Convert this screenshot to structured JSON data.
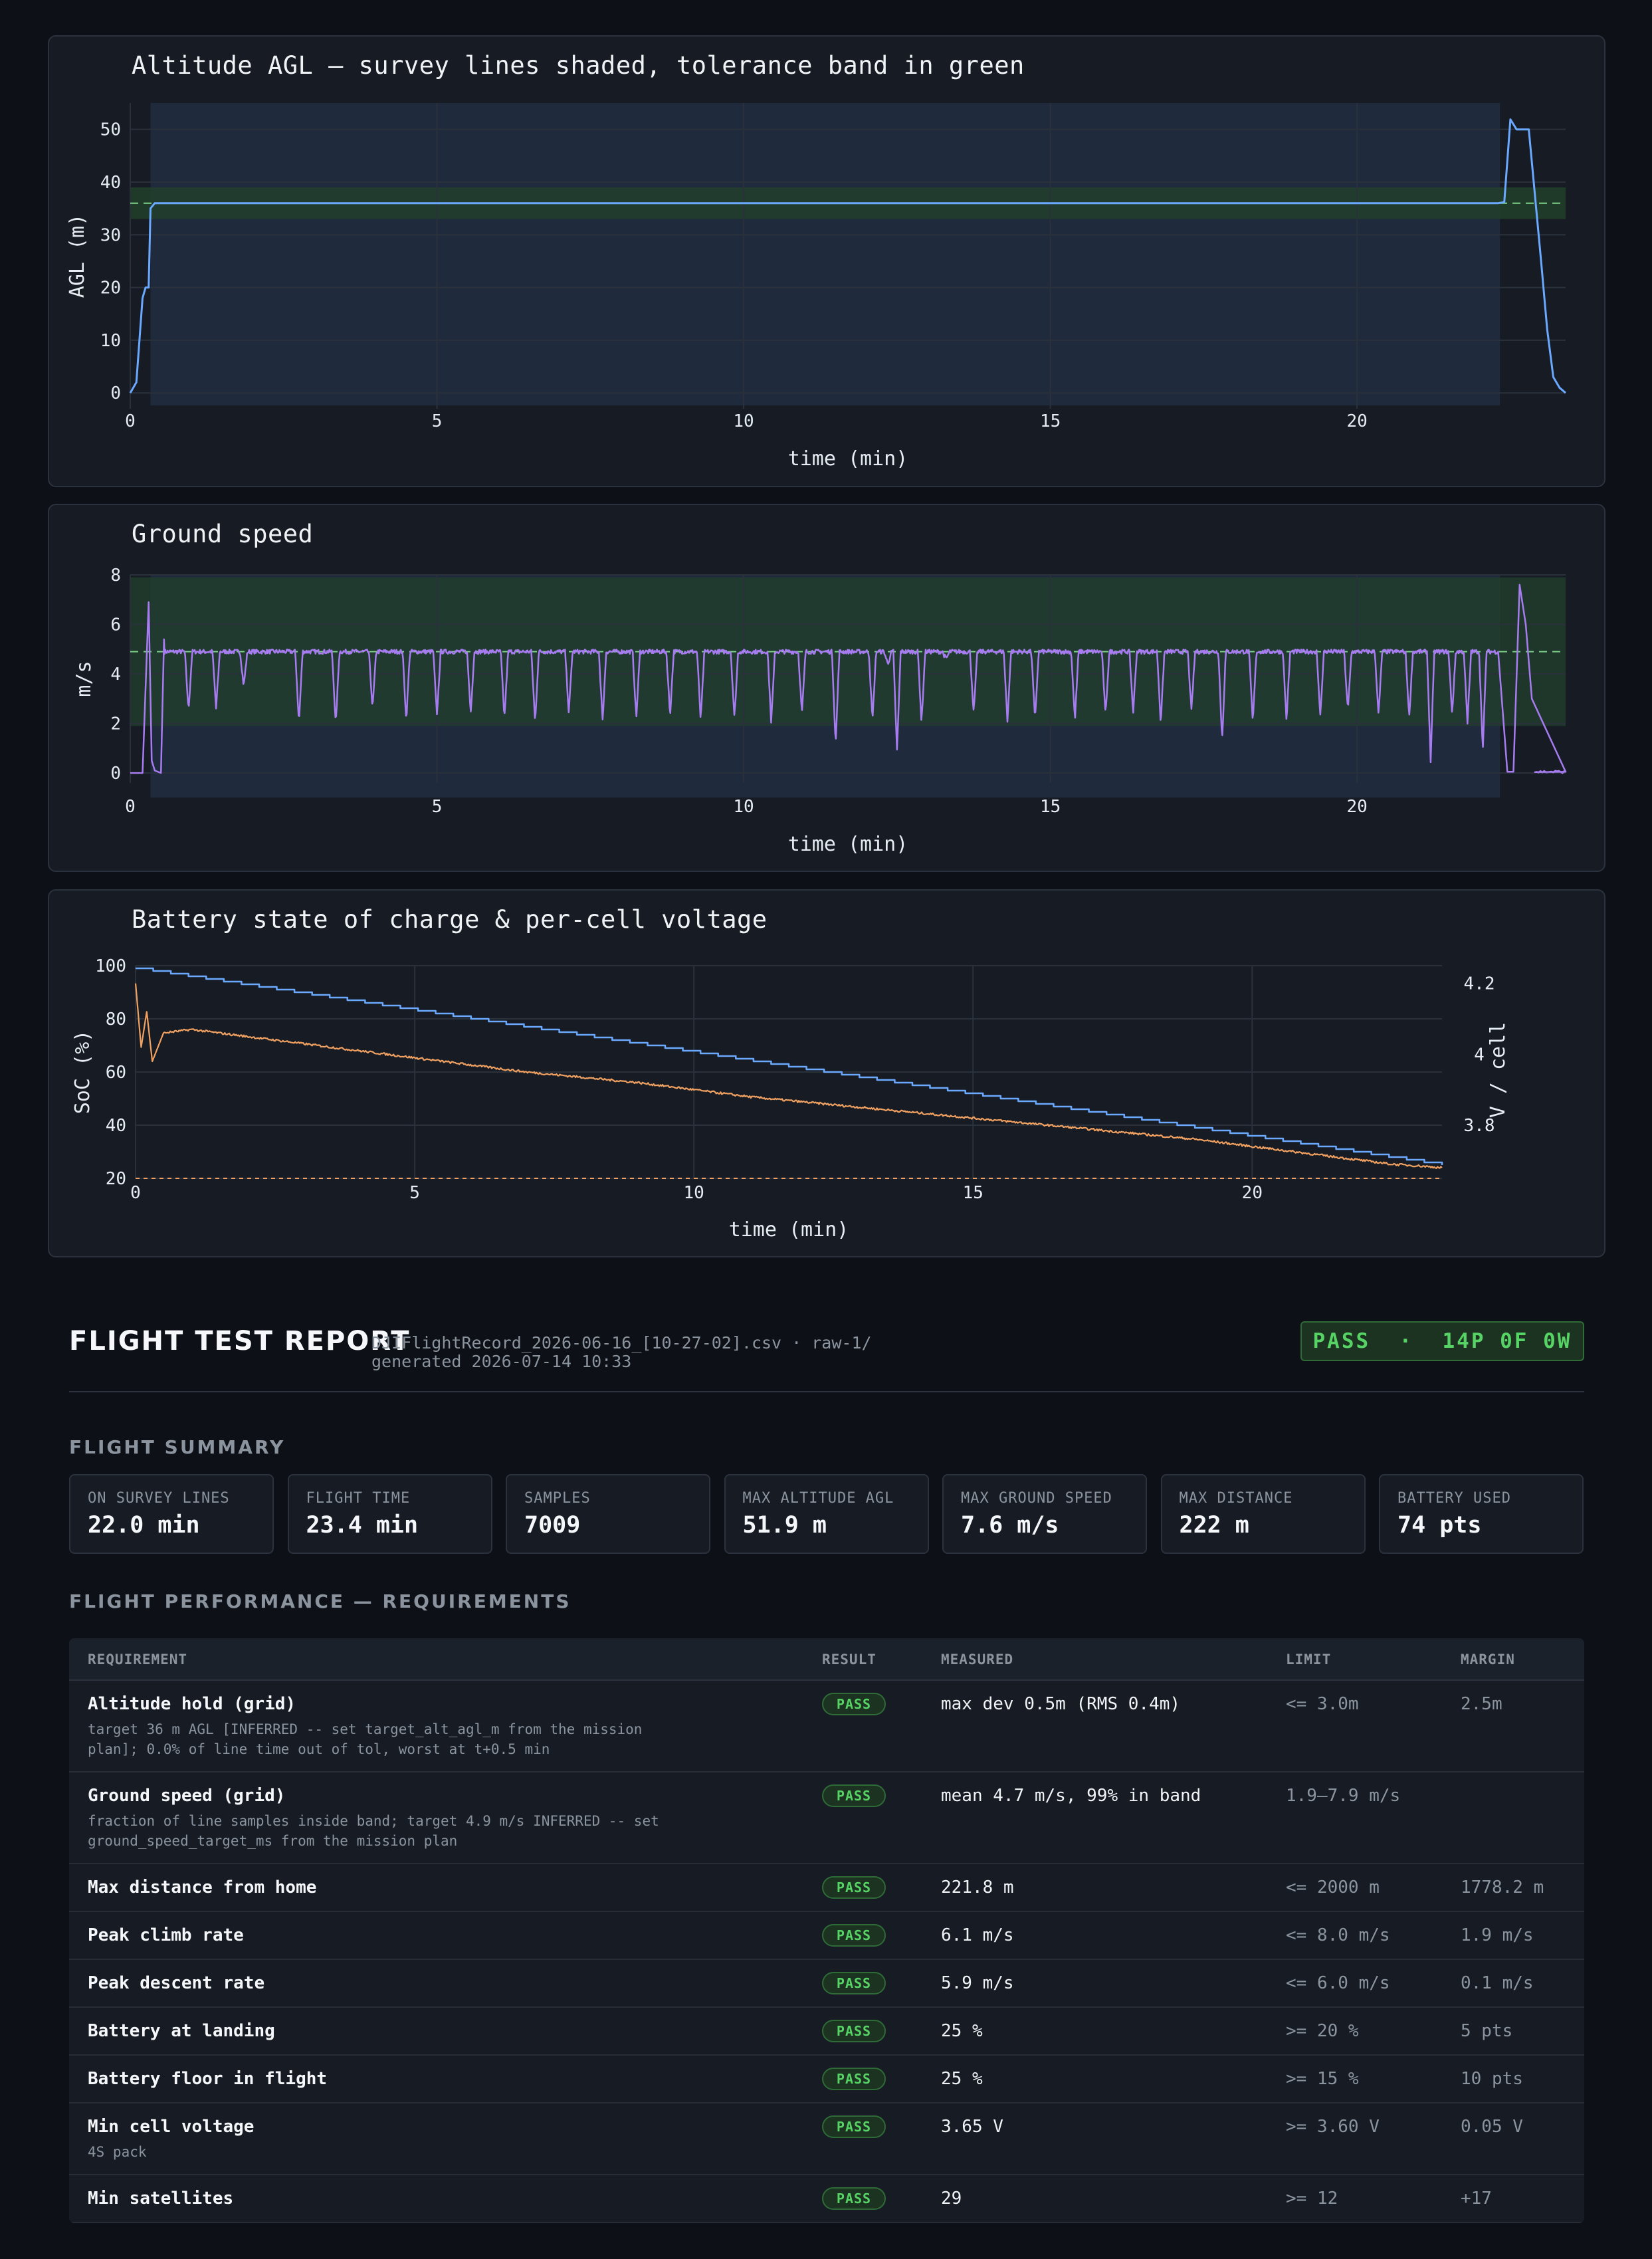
{
  "charts": {
    "altitude": {
      "title": "Altitude AGL — survey lines shaded, tolerance band in green",
      "xlabel": "time (min)",
      "ylabel": "AGL (m)"
    },
    "speed": {
      "title": "Ground speed",
      "xlabel": "time (min)",
      "ylabel": "m/s"
    },
    "battery": {
      "title": "Battery state of charge & per-cell voltage",
      "xlabel": "time (min)",
      "ylabel": "SoC (%)",
      "ylabel2": "V / cell"
    }
  },
  "chart_data": [
    {
      "type": "line",
      "title": "Altitude AGL — survey lines shaded, tolerance band in green",
      "xlabel": "time (min)",
      "ylabel": "AGL (m)",
      "xlim": [
        0,
        23.4
      ],
      "ylim": [
        -3,
        55
      ],
      "x_ticks": [
        0,
        5,
        10,
        15,
        20
      ],
      "y_ticks": [
        0,
        10,
        20,
        30,
        40,
        50
      ],
      "survey_span": [
        0.33,
        22.33
      ],
      "tolerance_band": [
        33,
        39
      ],
      "target": 36,
      "series": [
        {
          "color": "#6aa9ff",
          "x": [
            0,
            0.1,
            0.2,
            0.25,
            0.3,
            0.33,
            0.4,
            1,
            5,
            10,
            15,
            20,
            22.3,
            22.4,
            22.5,
            22.6,
            22.8,
            23.0,
            23.1,
            23.2,
            23.3,
            23.4
          ],
          "y": [
            0,
            2,
            18,
            20,
            20,
            35,
            36,
            36,
            36,
            36,
            36,
            36,
            36,
            36.2,
            51.9,
            50,
            50,
            25,
            12,
            3,
            1,
            0
          ]
        }
      ],
      "grid": true
    },
    {
      "type": "line",
      "title": "Ground speed",
      "xlabel": "time (min)",
      "ylabel": "m/s",
      "xlim": [
        0,
        23.4
      ],
      "ylim": [
        -0.4,
        8
      ],
      "x_ticks": [
        0,
        5,
        10,
        15,
        20
      ],
      "y_ticks": [
        0,
        2,
        4,
        6,
        8
      ],
      "survey_span": [
        0.33,
        22.33
      ],
      "speed_band": [
        1.9,
        7.9
      ],
      "target": 4.9,
      "series": [
        {
          "color": "#a67cf0",
          "base": 4.9,
          "dips": [
            [
              0.95,
              2.5
            ],
            [
              1.4,
              2.6
            ],
            [
              1.85,
              3.5
            ],
            [
              2.75,
              2.0
            ],
            [
              3.35,
              1.9
            ],
            [
              3.95,
              2.6
            ],
            [
              4.5,
              2.1
            ],
            [
              5.0,
              2.3
            ],
            [
              5.55,
              2.4
            ],
            [
              6.1,
              2.2
            ],
            [
              6.6,
              2.0
            ],
            [
              7.15,
              2.4
            ],
            [
              7.7,
              2.1
            ],
            [
              8.25,
              2.2
            ],
            [
              8.8,
              2.3
            ],
            [
              9.3,
              2.1
            ],
            [
              9.85,
              2.2
            ],
            [
              10.45,
              2.0
            ],
            [
              10.95,
              2.4
            ],
            [
              11.5,
              1.1
            ],
            [
              12.1,
              2.1
            ],
            [
              12.35,
              4.4
            ],
            [
              12.5,
              0.9
            ],
            [
              12.9,
              2.0
            ],
            [
              13.3,
              4.6
            ],
            [
              13.75,
              2.4
            ],
            [
              14.3,
              2.1
            ],
            [
              14.75,
              2.1
            ],
            [
              15.4,
              2.1
            ],
            [
              15.9,
              2.3
            ],
            [
              16.35,
              2.4
            ],
            [
              16.8,
              2.0
            ],
            [
              17.3,
              2.5
            ],
            [
              17.8,
              1.3
            ],
            [
              18.3,
              2.0
            ],
            [
              18.85,
              2.1
            ],
            [
              19.4,
              2.3
            ],
            [
              19.85,
              2.5
            ],
            [
              20.35,
              2.3
            ],
            [
              20.85,
              2.2
            ],
            [
              21.2,
              0.5
            ],
            [
              21.55,
              2.4
            ],
            [
              21.8,
              2.0
            ],
            [
              22.05,
              0.9
            ]
          ],
          "x": [
            0,
            0.2,
            0.3,
            0.35,
            0.4,
            0.5,
            0.55,
            22.3,
            22.45,
            22.55,
            22.65,
            22.75,
            22.85,
            23.4
          ],
          "y": [
            0,
            0,
            6.9,
            0.5,
            0.1,
            0,
            5.4,
            4.9,
            0.05,
            0.05,
            7.6,
            6,
            3,
            0.05
          ]
        }
      ],
      "grid": true
    },
    {
      "type": "line",
      "title": "Battery state of charge & per-cell voltage",
      "xlabel": "time (min)",
      "ylabel": "SoC (%)",
      "ylabel2": "V / cell",
      "xlim": [
        0,
        23.4
      ],
      "ylim": [
        20,
        100
      ],
      "y2lim": [
        3.65,
        4.25
      ],
      "x_ticks": [
        0,
        5,
        10,
        15,
        20
      ],
      "y_ticks": [
        20,
        40,
        60,
        80,
        100
      ],
      "y2_ticks": [
        3.8,
        4,
        4.2
      ],
      "soc_floor": 20,
      "series": [
        {
          "name": "SoC",
          "color": "#6aa9ff",
          "axis": "left",
          "x": [
            0,
            23.4
          ],
          "y": [
            99,
            25
          ]
        },
        {
          "name": "Cell voltage",
          "color": "#f0a060",
          "axis": "right",
          "x": [
            0,
            0.1,
            0.2,
            0.3,
            0.5,
            1,
            2,
            3,
            5,
            7,
            9,
            11,
            13,
            15,
            17,
            19,
            21,
            22,
            22.5,
            23,
            23.4
          ],
          "y": [
            4.2,
            4.02,
            4.12,
            3.98,
            4.06,
            4.07,
            4.05,
            4.03,
            3.99,
            3.95,
            3.92,
            3.88,
            3.85,
            3.82,
            3.79,
            3.76,
            3.72,
            3.7,
            3.69,
            3.685,
            3.68
          ]
        }
      ],
      "grid": true
    }
  ],
  "report": {
    "title": "FLIGHT TEST REPORT",
    "file": "DJIFlightRecord_2026-06-16_[10-27-02].csv · raw-1/",
    "generated": "generated 2026-07-14 10:33",
    "badge": "PASS  ·  14P 0F 0W",
    "summary_title": "FLIGHT SUMMARY",
    "cards": [
      {
        "label": "ON SURVEY LINES",
        "value": "22.0 min"
      },
      {
        "label": "FLIGHT TIME",
        "value": "23.4 min"
      },
      {
        "label": "SAMPLES",
        "value": "7009"
      },
      {
        "label": "MAX ALTITUDE AGL",
        "value": "51.9 m"
      },
      {
        "label": "MAX GROUND SPEED",
        "value": "7.6 m/s"
      },
      {
        "label": "MAX DISTANCE",
        "value": "222 m"
      },
      {
        "label": "BATTERY USED",
        "value": "74 pts"
      }
    ],
    "perf_title": "FLIGHT PERFORMANCE — REQUIREMENTS",
    "headers": {
      "req": "REQUIREMENT",
      "result": "RESULT",
      "measured": "MEASURED",
      "limit": "LIMIT",
      "margin": "MARGIN"
    },
    "rows": [
      {
        "req": "Altitude hold (grid)",
        "note": "target 36 m AGL [INFERRED -- set target_alt_agl_m from the mission plan]; 0.0% of line time out of tol, worst at t+0.5 min",
        "result": "PASS",
        "measured": "max dev 0.5m (RMS 0.4m)",
        "limit": "<= 3.0m",
        "margin": "2.5m"
      },
      {
        "req": "Ground speed (grid)",
        "note": "fraction of line samples inside band; target 4.9 m/s INFERRED -- set ground_speed_target_ms from the mission plan",
        "result": "PASS",
        "measured": "mean 4.7 m/s, 99% in band",
        "limit": "1.9–7.9 m/s",
        "margin": ""
      },
      {
        "req": "Max distance from home",
        "note": "",
        "result": "PASS",
        "measured": "221.8 m",
        "limit": "<= 2000 m",
        "margin": "1778.2 m"
      },
      {
        "req": "Peak climb rate",
        "note": "",
        "result": "PASS",
        "measured": "6.1 m/s",
        "limit": "<= 8.0 m/s",
        "margin": "1.9 m/s"
      },
      {
        "req": "Peak descent rate",
        "note": "",
        "result": "PASS",
        "measured": "5.9 m/s",
        "limit": "<= 6.0 m/s",
        "margin": "0.1 m/s"
      },
      {
        "req": "Battery at landing",
        "note": "",
        "result": "PASS",
        "measured": "25 %",
        "limit": ">= 20 %",
        "margin": "5 pts"
      },
      {
        "req": "Battery floor in flight",
        "note": "",
        "result": "PASS",
        "measured": "25 %",
        "limit": ">= 15 %",
        "margin": "10 pts"
      },
      {
        "req": "Min cell voltage",
        "note": "4S pack",
        "result": "PASS",
        "measured": "3.65 V",
        "limit": ">= 3.60 V",
        "margin": "0.05 V"
      },
      {
        "req": "Min satellites",
        "note": "",
        "result": "PASS",
        "measured": "29",
        "limit": ">= 12",
        "margin": "+17"
      }
    ]
  }
}
